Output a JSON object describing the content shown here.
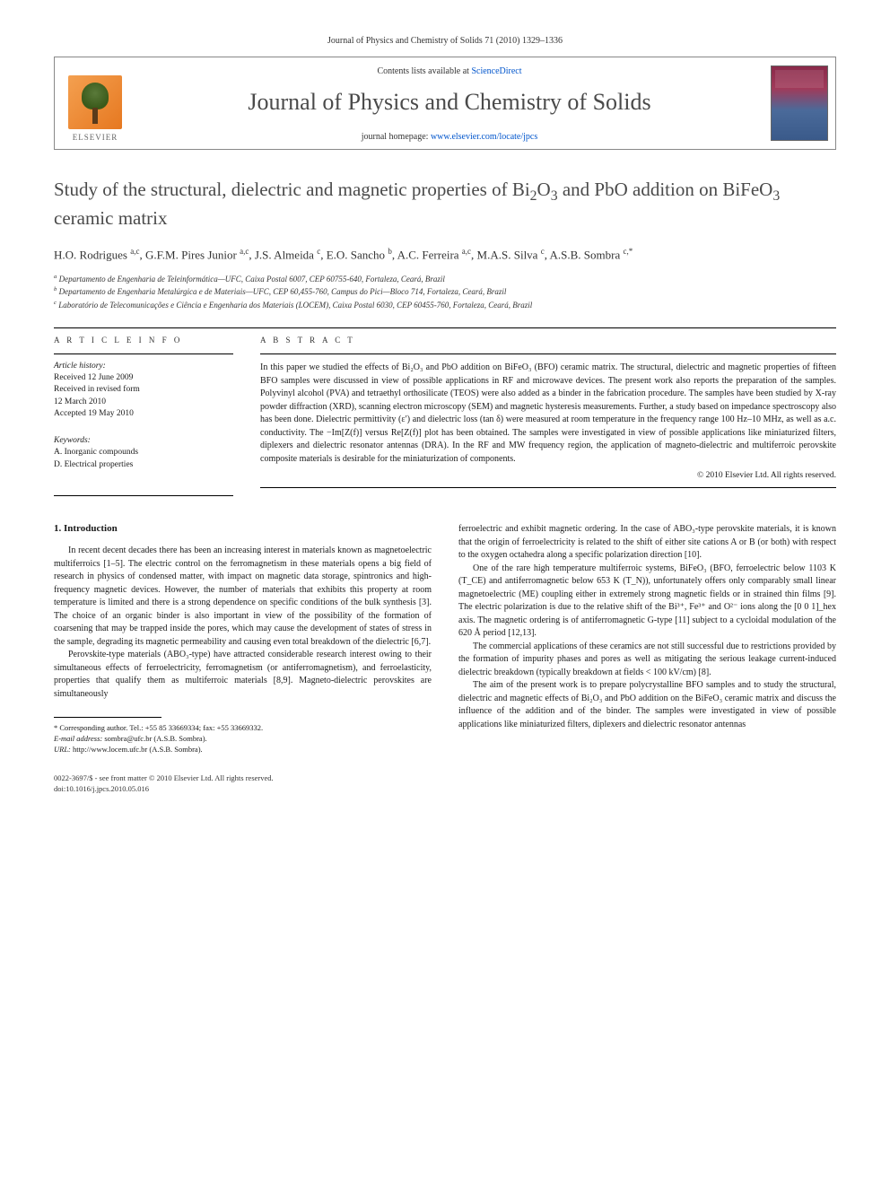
{
  "header_citation": "Journal of Physics and Chemistry of Solids 71 (2010) 1329–1336",
  "masthead": {
    "contents_prefix": "Contents lists available at ",
    "contents_link": "ScienceDirect",
    "journal_name": "Journal of Physics and Chemistry of Solids",
    "homepage_prefix": "journal homepage: ",
    "homepage_link": "www.elsevier.com/locate/jpcs",
    "publisher": "ELSEVIER"
  },
  "title_parts": {
    "p1": "Study of the structural, dielectric and magnetic properties of Bi",
    "p2": "O",
    "p3": " and PbO addition on BiFeO",
    "p4": " ceramic matrix"
  },
  "authors_html": "H.O. Rodrigues <sup>a,c</sup>, G.F.M. Pires Junior <sup>a,c</sup>, J.S. Almeida <sup>c</sup>, E.O. Sancho <sup>b</sup>, A.C. Ferreira <sup>a,c</sup>, M.A.S. Silva <sup>c</sup>, A.S.B. Sombra <sup>c,*</sup>",
  "affiliations": {
    "a": "Departamento de Engenharia de Teleinformática—UFC, Caixa Postal 6007, CEP 60755-640, Fortaleza, Ceará, Brazil",
    "b": "Departamento de Engenharia Metalúrgica e de Materiais—UFC, CEP 60,455-760, Campus do Pici—Bloco 714, Fortaleza, Ceará, Brazil",
    "c": "Laboratório de Telecomunicações e Ciência e Engenharia dos Materiais (LOCEM), Caixa Postal 6030, CEP 60455-760, Fortaleza, Ceará, Brazil"
  },
  "article_info": {
    "heading": "A R T I C L E   I N F O",
    "history_label": "Article history:",
    "received": "Received 12 June 2009",
    "revised1": "Received in revised form",
    "revised2": "12 March 2010",
    "accepted": "Accepted 19 May 2010",
    "keywords_label": "Keywords:",
    "kw1": "A. Inorganic compounds",
    "kw2": "D. Electrical properties"
  },
  "abstract": {
    "heading": "A B S T R A C T",
    "text": "In this paper we studied the effects of Bi₂O₃ and PbO addition on BiFeO₃ (BFO) ceramic matrix. The structural, dielectric and magnetic properties of fifteen BFO samples were discussed in view of possible applications in RF and microwave devices. The present work also reports the preparation of the samples. Polyvinyl alcohol (PVA) and tetraethyl orthosilicate (TEOS) were also added as a binder in the fabrication procedure. The samples have been studied by X-ray powder diffraction (XRD), scanning electron microscopy (SEM) and magnetic hysteresis measurements. Further, a study based on impedance spectroscopy also has been done. Dielectric permittivity (ε′) and dielectric loss (tan δ) were measured at room temperature in the frequency range 100 Hz–10 MHz, as well as a.c. conductivity. The −Im[Z(f)] versus Re[Z(f)] plot has been obtained. The samples were investigated in view of possible applications like miniaturized filters, diplexers and dielectric resonator antennas (DRA). In the RF and MW frequency region, the application of magneto-dielectric and multiferroic perovskite composite materials is desirable for the miniaturization of components.",
    "copyright": "© 2010 Elsevier Ltd. All rights reserved."
  },
  "section1_heading": "1.  Introduction",
  "body": {
    "col1_p1": "In recent decent decades there has been an increasing interest in materials known as magnetoelectric multiferroics [1–5]. The electric control on the ferromagnetism in these materials opens a big field of research in physics of condensed matter, with impact on magnetic data storage, spintronics and high-frequency magnetic devices. However, the number of materials that exhibits this property at room temperature is limited and there is a strong dependence on specific conditions of the bulk synthesis [3]. The choice of an organic binder is also important in view of the possibility of the formation of coarsening that may be trapped inside the pores, which may cause the development of states of stress in the sample, degrading its magnetic permeability and causing even total breakdown of the dielectric [6,7].",
    "col1_p2": "Perovskite-type materials (ABO₃-type) have attracted considerable research interest owing to their simultaneous effects of ferroelectricity, ferromagnetism (or antiferromagnetism), and ferroelasticity, properties that qualify them as multiferroic materials [8,9]. Magneto-dielectric perovskites are simultaneously",
    "col2_p1": "ferroelectric and exhibit magnetic ordering. In the case of ABO₃-type perovskite materials, it is known that the origin of ferroelectricity is related to the shift of either site cations A or B (or both) with respect to the oxygen octahedra along a specific polarization direction [10].",
    "col2_p2": "One of the rare high temperature multiferroic systems, BiFeO₃ (BFO, ferroelectric below 1103 K (T_CE) and antiferromagnetic below 653 K (T_N)), unfortunately offers only comparably small linear magnetoelectric (ME) coupling either in extremely strong magnetic fields or in strained thin films [9]. The electric polarization is due to the relative shift of the Bi³⁺, Fe³⁺ and O²⁻ ions along the [0 0 1]_hex axis. The magnetic ordering is of antiferromagnetic G-type [11] subject to a cycloidal modulation of the 620 Å period [12,13].",
    "col2_p3": "The commercial applications of these ceramics are not still successful due to restrictions provided by the formation of impurity phases and pores as well as mitigating the serious leakage current-induced dielectric breakdown (typically breakdown at fields < 100 kV/cm) [8].",
    "col2_p4": "The aim of the present work is to prepare polycrystalline BFO samples and to study the structural, dielectric and magnetic effects of Bi₂O₃ and PbO addition on the BiFeO₃ ceramic matrix and discuss the influence of the addition and of the binder. The samples were investigated in view of possible applications like miniaturized filters, diplexers and dielectric resonator antennas"
  },
  "footnotes": {
    "corr": "* Corresponding author. Tel.: +55 85 33669334; fax: +55 33669332.",
    "email_label": "E-mail address:",
    "email": "sombra@ufc.br (A.S.B. Sombra).",
    "url_label": "URL:",
    "url": "http://www.locem.ufc.br (A.S.B. Sombra)."
  },
  "bottom": {
    "issn": "0022-3697/$ - see front matter © 2010 Elsevier Ltd. All rights reserved.",
    "doi": "doi:10.1016/j.jpcs.2010.05.016"
  },
  "colors": {
    "link": "#0055cc",
    "heading_gray": "#4a4a4a",
    "elsevier_orange": "#e67820"
  },
  "typography": {
    "body_fontsize_pt": 10,
    "title_fontsize_pt": 21,
    "journal_name_fontsize_pt": 26,
    "small_fontsize_pt": 9
  }
}
